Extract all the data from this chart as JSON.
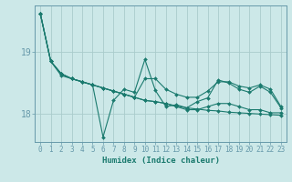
{
  "xlabel": "Humidex (Indice chaleur)",
  "background_color": "#cce8e8",
  "grid_color": "#aacccc",
  "line_color": "#1a7a6e",
  "spine_color": "#6699aa",
  "x": [
    0,
    1,
    2,
    3,
    4,
    5,
    6,
    7,
    8,
    9,
    10,
    11,
    12,
    13,
    14,
    15,
    16,
    17,
    18,
    19,
    20,
    21,
    22,
    23
  ],
  "series": [
    [
      19.62,
      18.85,
      18.65,
      18.57,
      18.52,
      18.47,
      18.42,
      18.37,
      18.32,
      18.27,
      18.22,
      18.2,
      18.17,
      18.13,
      18.1,
      18.08,
      18.06,
      18.05,
      18.03,
      18.02,
      18.01,
      18.0,
      17.99,
      17.98
    ],
    [
      19.62,
      18.85,
      18.62,
      18.57,
      18.52,
      18.47,
      17.63,
      18.22,
      18.4,
      18.35,
      18.88,
      18.38,
      18.12,
      18.15,
      18.1,
      18.2,
      18.26,
      18.55,
      18.5,
      18.4,
      18.35,
      18.45,
      18.35,
      18.1
    ],
    [
      19.62,
      18.85,
      18.65,
      18.57,
      18.52,
      18.47,
      18.42,
      18.37,
      18.32,
      18.27,
      18.57,
      18.57,
      18.4,
      18.32,
      18.27,
      18.27,
      18.37,
      18.52,
      18.52,
      18.45,
      18.42,
      18.47,
      18.4,
      18.12
    ],
    [
      19.62,
      18.85,
      18.65,
      18.57,
      18.52,
      18.47,
      18.42,
      18.37,
      18.32,
      18.27,
      18.22,
      18.2,
      18.17,
      18.12,
      18.07,
      18.07,
      18.12,
      18.17,
      18.17,
      18.12,
      18.07,
      18.07,
      18.02,
      18.02
    ]
  ],
  "ylim": [
    17.55,
    19.75
  ],
  "yticks": [
    18,
    19
  ],
  "xlim": [
    -0.5,
    23.5
  ],
  "markersize": 2.0,
  "linewidth": 0.8
}
